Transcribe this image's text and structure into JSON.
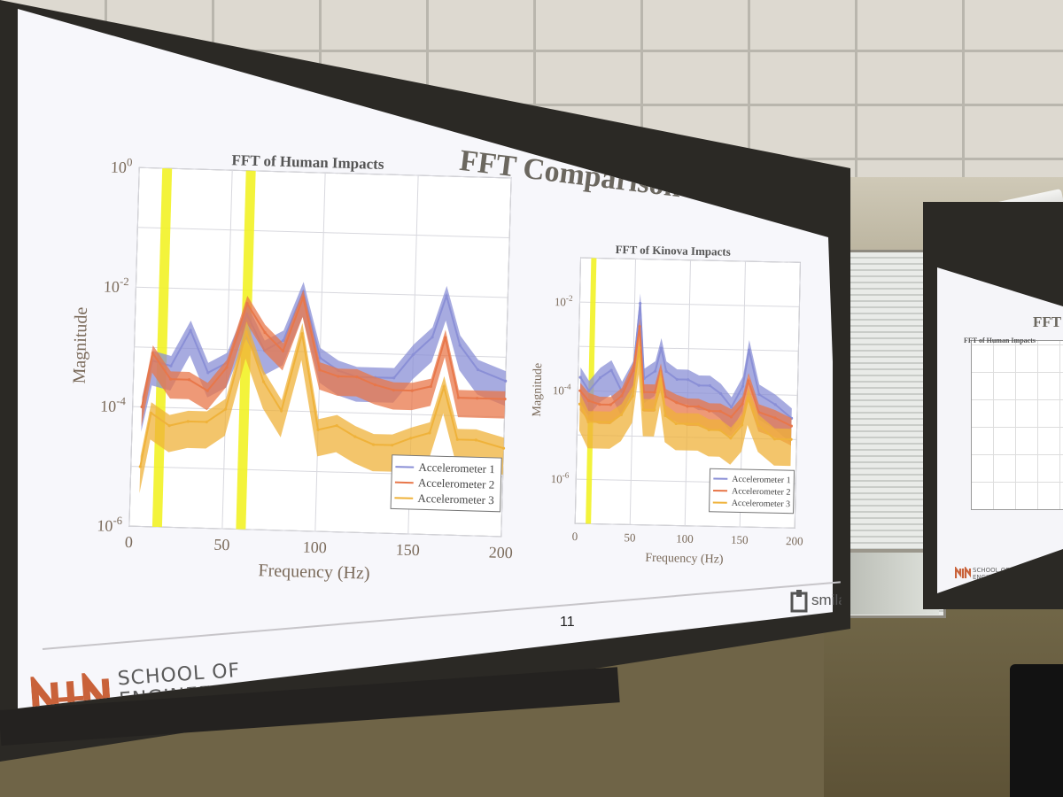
{
  "slide": {
    "title": "FFT Comparison",
    "page_number": "11",
    "school_logo_text": "SCHOOL OF\nENGINEERING",
    "lab_logo_text": "smilab"
  },
  "secondary_screen": {
    "title": "FFT Co",
    "plot_title": "FFT of Human Impacts",
    "logo_text": "SCHOOL OF\nENGINEERING"
  },
  "colors": {
    "accelerometer_1": "#8a8fd6",
    "accelerometer_2": "#e8774a",
    "accelerometer_3": "#efb23a",
    "highlight": "#f2f226",
    "axis_text": "#7a6a5a",
    "unm_red": "#c9623a"
  },
  "chart_data": [
    {
      "id": "human",
      "type": "line",
      "title": "FFT of Human Impacts",
      "xlabel": "Frequency (Hz)",
      "ylabel": "Magnitude",
      "xlim": [
        0,
        200
      ],
      "ylim": [
        1e-06,
        1
      ],
      "yscale": "log",
      "xticks": [
        0,
        50,
        100,
        150,
        200
      ],
      "xtick_labels": [
        "0",
        "50",
        "100",
        "150",
        "200"
      ],
      "yticks": [
        1e-06,
        0.0001,
        0.01,
        1
      ],
      "ytick_labels": [
        {
          "base": "10",
          "exp": "-6"
        },
        {
          "base": "10",
          "exp": "-4"
        },
        {
          "base": "10",
          "exp": "-2"
        },
        {
          "base": "10",
          "exp": "0"
        }
      ],
      "grid": true,
      "legend_position": "bottom-right",
      "highlight_bands_hz": [
        15,
        60
      ],
      "series": [
        {
          "name": "Accelerometer 1",
          "color_key": "accelerometer_1",
          "x": [
            5,
            10,
            20,
            30,
            40,
            50,
            60,
            70,
            80,
            90,
            100,
            110,
            120,
            130,
            140,
            150,
            160,
            167,
            175,
            185,
            200
          ],
          "y": [
            0.0001,
            0.0006,
            0.0005,
            0.002,
            0.0004,
            0.0006,
            0.004,
            0.001,
            0.0015,
            0.01,
            0.0008,
            0.0005,
            0.0004,
            0.0004,
            0.0004,
            0.001,
            0.002,
            0.01,
            0.0015,
            0.0006,
            0.0004
          ]
        },
        {
          "name": "Accelerometer 2",
          "color_key": "accelerometer_2",
          "x": [
            5,
            10,
            20,
            30,
            40,
            50,
            60,
            70,
            80,
            90,
            100,
            110,
            120,
            130,
            140,
            150,
            160,
            167,
            175,
            185,
            200
          ],
          "y": [
            0.0001,
            0.0008,
            0.0003,
            0.0003,
            0.0002,
            0.0005,
            0.006,
            0.002,
            0.001,
            0.008,
            0.0005,
            0.0004,
            0.0004,
            0.0003,
            0.00025,
            0.00025,
            0.0003,
            0.002,
            0.0002,
            0.0002,
            0.0002
          ]
        },
        {
          "name": "Accelerometer 3",
          "color_key": "accelerometer_3",
          "x": [
            5,
            10,
            20,
            30,
            40,
            50,
            60,
            70,
            80,
            90,
            100,
            110,
            120,
            130,
            140,
            150,
            160,
            167,
            175,
            185,
            200
          ],
          "y": [
            1e-05,
            8e-05,
            5e-05,
            6e-05,
            6e-05,
            0.0001,
            0.002,
            0.0003,
            0.0001,
            0.002,
            5e-05,
            6e-05,
            4e-05,
            3e-05,
            3e-05,
            4e-05,
            5e-05,
            0.0003,
            4e-05,
            4e-05,
            3e-05
          ]
        }
      ]
    },
    {
      "id": "kinova",
      "type": "line",
      "title": "FFT of Kinova Impacts",
      "xlabel": "Frequency (Hz)",
      "ylabel": "Magnitude",
      "xlim": [
        0,
        200
      ],
      "ylim": [
        1e-07,
        0.1
      ],
      "yscale": "log",
      "xticks": [
        0,
        50,
        100,
        150,
        200
      ],
      "xtick_labels": [
        "0",
        "50",
        "100",
        "150",
        "200"
      ],
      "yticks": [
        1e-06,
        0.0001,
        0.01
      ],
      "ytick_labels": [
        {
          "base": "10",
          "exp": "-6"
        },
        {
          "base": "10",
          "exp": "-4"
        },
        {
          "base": "10",
          "exp": "-2"
        }
      ],
      "grid": true,
      "legend_position": "bottom-right",
      "highlight_bands_hz": [
        12
      ],
      "series": [
        {
          "name": "Accelerometer 1",
          "color_key": "accelerometer_1",
          "x": [
            2,
            10,
            20,
            30,
            40,
            50,
            55,
            60,
            70,
            75,
            80,
            90,
            100,
            110,
            120,
            130,
            140,
            150,
            155,
            165,
            180,
            195
          ],
          "y": [
            0.0002,
            0.0001,
            0.0002,
            0.0003,
            0.0001,
            0.0003,
            0.01,
            0.0002,
            0.0003,
            0.001,
            0.0003,
            0.0002,
            0.0002,
            0.00015,
            0.00015,
            0.0001,
            5e-05,
            0.00015,
            0.001,
            0.0001,
            6e-05,
            3e-05
          ]
        },
        {
          "name": "Accelerometer 2",
          "color_key": "accelerometer_2",
          "x": [
            2,
            10,
            20,
            30,
            40,
            50,
            55,
            60,
            70,
            75,
            80,
            90,
            100,
            110,
            120,
            130,
            140,
            150,
            155,
            165,
            180,
            195
          ],
          "y": [
            0.0001,
            6e-05,
            5e-05,
            5e-05,
            8e-05,
            0.0003,
            0.003,
            0.0001,
            0.0001,
            0.0003,
            8e-05,
            6e-05,
            5e-05,
            5e-05,
            4e-05,
            4e-05,
            3e-05,
            6e-05,
            0.0002,
            4e-05,
            3e-05,
            2e-05
          ]
        },
        {
          "name": "Accelerometer 3",
          "color_key": "accelerometer_3",
          "x": [
            2,
            10,
            20,
            30,
            40,
            50,
            55,
            60,
            70,
            75,
            80,
            90,
            100,
            110,
            120,
            130,
            140,
            150,
            155,
            165,
            180,
            195
          ],
          "y": [
            5e-05,
            2e-05,
            2e-05,
            2e-05,
            3e-05,
            8e-05,
            0.001,
            4e-05,
            4e-05,
            0.0002,
            3e-05,
            2e-05,
            2e-05,
            2e-05,
            1.5e-05,
            1.5e-05,
            1e-05,
            2e-05,
            8e-05,
            2e-05,
            1e-05,
            1e-05
          ]
        }
      ]
    }
  ]
}
